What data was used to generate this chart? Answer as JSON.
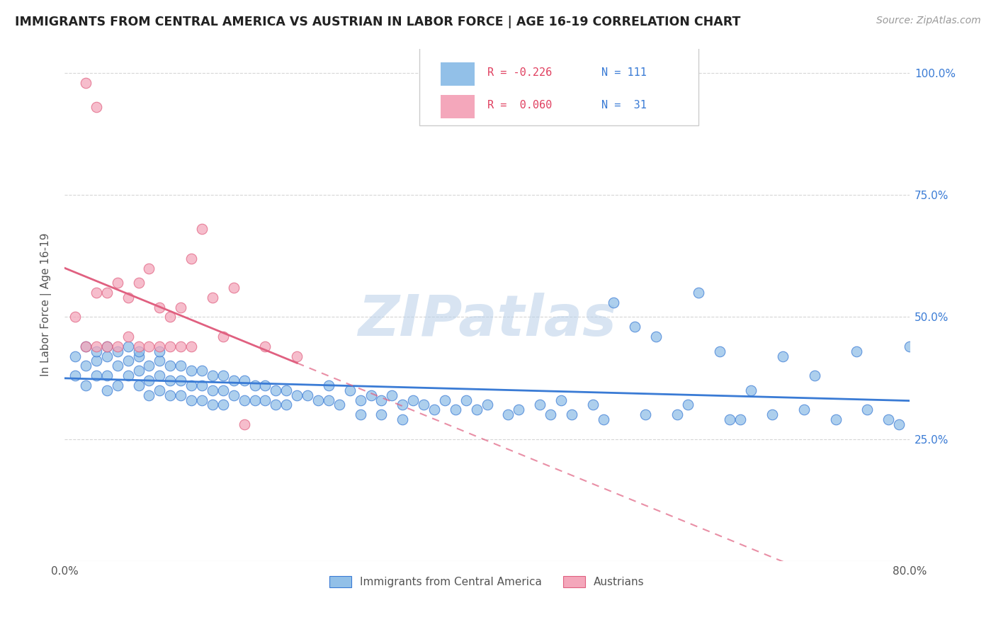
{
  "title": "IMMIGRANTS FROM CENTRAL AMERICA VS AUSTRIAN IN LABOR FORCE | AGE 16-19 CORRELATION CHART",
  "source": "Source: ZipAtlas.com",
  "ylabel": "In Labor Force | Age 16-19",
  "ytick_values": [
    0.0,
    0.25,
    0.5,
    0.75,
    1.0
  ],
  "ytick_labels": [
    "",
    "25.0%",
    "50.0%",
    "75.0%",
    "100.0%"
  ],
  "xlim": [
    0.0,
    0.8
  ],
  "ylim": [
    0.0,
    1.05
  ],
  "blue_color": "#92c0e8",
  "pink_color": "#f4a7bb",
  "blue_line_color": "#3a7bd5",
  "pink_line_color": "#e06080",
  "background_color": "#ffffff",
  "grid_color": "#cccccc",
  "legend_label_blue": "Immigrants from Central America",
  "legend_label_pink": "Austrians",
  "watermark": "ZIPatlas"
}
